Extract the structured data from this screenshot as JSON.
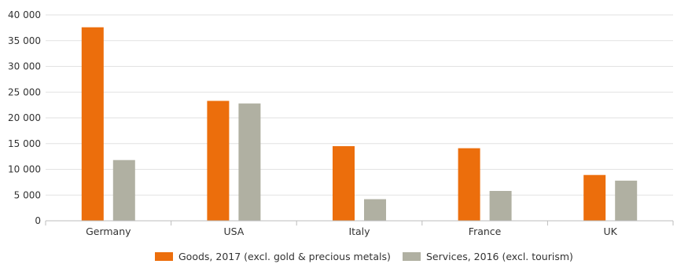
{
  "chart_data": {
    "type": "bar",
    "categories": [
      "Germany",
      "USA",
      "Italy",
      "France",
      "UK"
    ],
    "series": [
      {
        "name": "Goods, 2017 (excl. gold & precious metals)",
        "color": "#ec6e0c",
        "values": [
          37600,
          23300,
          14500,
          14100,
          8900
        ]
      },
      {
        "name": "Services, 2016 (excl. tourism)",
        "color": "#b0b0a2",
        "values": [
          11800,
          22800,
          4200,
          5800,
          7800
        ]
      }
    ],
    "ylim": [
      0,
      40000
    ],
    "yticks": [
      {
        "value": 0,
        "label": "0"
      },
      {
        "value": 5000,
        "label": "5 000"
      },
      {
        "value": 10000,
        "label": "10 000"
      },
      {
        "value": 15000,
        "label": "15 000"
      },
      {
        "value": 20000,
        "label": "20 000"
      },
      {
        "value": 25000,
        "label": "25 000"
      },
      {
        "value": 30000,
        "label": "30 000"
      },
      {
        "value": 35000,
        "label": "35 000"
      },
      {
        "value": 40000,
        "label": "40 000"
      }
    ],
    "grid": true,
    "legend_position": "bottom-center",
    "title": "",
    "xlabel": "",
    "ylabel": ""
  }
}
